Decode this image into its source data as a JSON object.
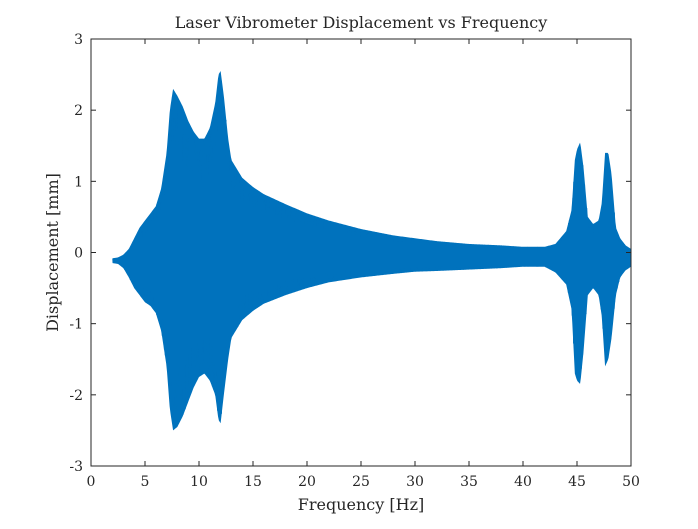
{
  "chart_data": {
    "type": "line",
    "title": "Laser Vibrometer Displacement vs Frequency",
    "xlabel": "Frequency [Hz]",
    "ylabel": "Displacement [mm]",
    "xlim": [
      0,
      50
    ],
    "ylim": [
      -3,
      3
    ],
    "xticks": [
      0,
      5,
      10,
      15,
      20,
      25,
      30,
      35,
      40,
      45,
      50
    ],
    "yticks": [
      -3,
      -2,
      -1,
      0,
      1,
      2,
      3
    ],
    "grid": false,
    "legend": "none",
    "series": [
      {
        "color": "#0072BD",
        "x_range": [
          2,
          50
        ],
        "envelope_upper": {
          "x": [
            2.0,
            2.5,
            3.0,
            3.5,
            4.0,
            4.5,
            5.0,
            5.5,
            6.0,
            6.5,
            7.0,
            7.3,
            7.6,
            8.0,
            8.5,
            9.0,
            9.5,
            10.0,
            10.5,
            11.0,
            11.5,
            11.8,
            12.0,
            12.3,
            12.7,
            13.0,
            14.0,
            15.0,
            16.0,
            18.0,
            20.0,
            22.0,
            25.0,
            28.0,
            30.0,
            32.0,
            35.0,
            38.0,
            40.0,
            42.0,
            43.0,
            44.0,
            44.5,
            44.8,
            45.0,
            45.3,
            45.6,
            46.0,
            46.5,
            47.0,
            47.3,
            47.6,
            47.9,
            48.2,
            48.6,
            49.0,
            49.5,
            50.0
          ],
          "y": [
            -0.08,
            -0.07,
            -0.03,
            0.05,
            0.2,
            0.35,
            0.45,
            0.55,
            0.65,
            0.9,
            1.4,
            2.0,
            2.3,
            2.2,
            2.05,
            1.85,
            1.7,
            1.6,
            1.6,
            1.75,
            2.1,
            2.5,
            2.55,
            2.2,
            1.6,
            1.3,
            1.05,
            0.92,
            0.82,
            0.68,
            0.55,
            0.45,
            0.33,
            0.24,
            0.2,
            0.16,
            0.12,
            0.1,
            0.08,
            0.08,
            0.12,
            0.3,
            0.6,
            1.3,
            1.45,
            1.55,
            1.2,
            0.5,
            0.4,
            0.45,
            0.7,
            1.4,
            1.4,
            1.1,
            0.35,
            0.2,
            0.1,
            0.05
          ]
        },
        "envelope_lower": {
          "x": [
            2.0,
            2.5,
            3.0,
            3.5,
            4.0,
            4.5,
            5.0,
            5.5,
            6.0,
            6.5,
            7.0,
            7.3,
            7.6,
            8.0,
            8.5,
            9.0,
            9.5,
            10.0,
            10.5,
            11.0,
            11.5,
            11.8,
            12.0,
            12.3,
            12.7,
            13.0,
            14.0,
            15.0,
            16.0,
            18.0,
            20.0,
            22.0,
            25.0,
            28.0,
            30.0,
            32.0,
            35.0,
            38.0,
            40.0,
            42.0,
            43.0,
            44.0,
            44.5,
            44.8,
            45.0,
            45.3,
            45.6,
            46.0,
            46.5,
            47.0,
            47.3,
            47.6,
            47.9,
            48.2,
            48.6,
            49.0,
            49.5,
            50.0
          ],
          "y": [
            -0.15,
            -0.16,
            -0.22,
            -0.35,
            -0.5,
            -0.6,
            -0.7,
            -0.75,
            -0.85,
            -1.1,
            -1.6,
            -2.2,
            -2.5,
            -2.45,
            -2.3,
            -2.1,
            -1.9,
            -1.75,
            -1.7,
            -1.8,
            -2.0,
            -2.35,
            -2.4,
            -2.0,
            -1.5,
            -1.2,
            -0.95,
            -0.82,
            -0.72,
            -0.6,
            -0.5,
            -0.42,
            -0.35,
            -0.3,
            -0.27,
            -0.26,
            -0.24,
            -0.22,
            -0.2,
            -0.2,
            -0.28,
            -0.45,
            -0.8,
            -1.7,
            -1.8,
            -1.85,
            -1.4,
            -0.6,
            -0.5,
            -0.6,
            -0.9,
            -1.6,
            -1.5,
            -1.2,
            -0.6,
            -0.35,
            -0.25,
            -0.2
          ]
        }
      }
    ]
  }
}
